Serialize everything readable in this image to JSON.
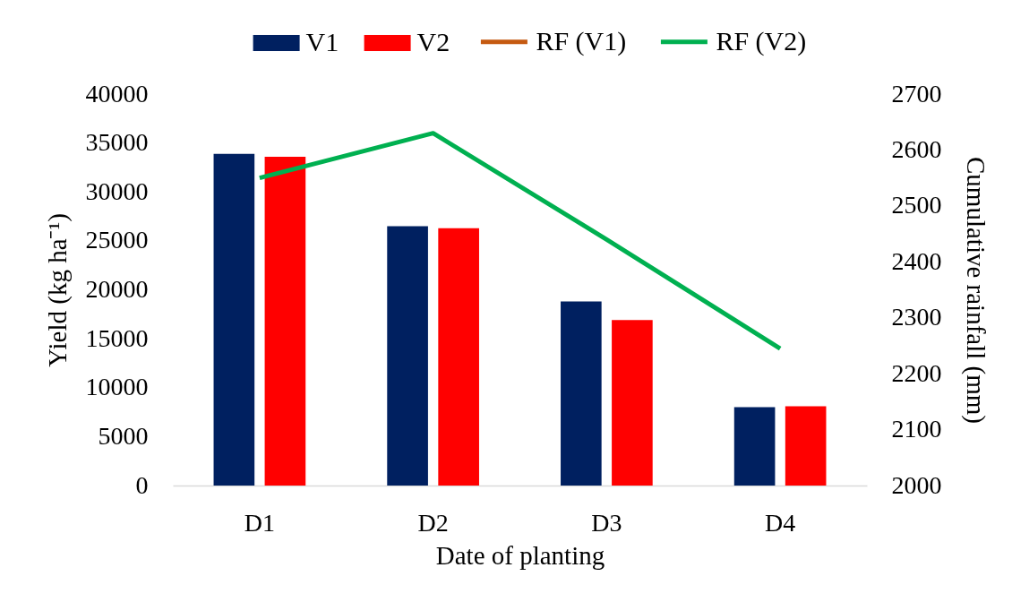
{
  "chart_data": {
    "type": "bar",
    "xlabel": "Date of planting",
    "ylabel": "Yield (kg ha⁻¹)",
    "y2label": "Cumulative rainfall (mm)",
    "categories": [
      "D1",
      "D2",
      "D3",
      "D4"
    ],
    "series": [
      {
        "name": "V1",
        "color": "#002060",
        "values": [
          33900,
          26500,
          18800,
          8000
        ]
      },
      {
        "name": "V2",
        "color": "#ff0000",
        "values": [
          33600,
          26300,
          16900,
          8100
        ]
      },
      {
        "name": "RF (V1)",
        "type": "line",
        "axis": "y2",
        "color": "#c55a11",
        "values": [
          null,
          null,
          null,
          null
        ]
      },
      {
        "name": "RF (V2)",
        "type": "line",
        "axis": "y2",
        "color": "#00b050",
        "values": [
          2550,
          2630,
          2440,
          2245
        ]
      }
    ],
    "ylim": [
      0,
      40000
    ],
    "yticks": [
      0,
      5000,
      10000,
      15000,
      20000,
      25000,
      30000,
      35000,
      40000
    ],
    "y2lim": [
      2000,
      2700
    ],
    "y2ticks": [
      2000,
      2100,
      2200,
      2300,
      2400,
      2500,
      2600,
      2700
    ],
    "grid": false,
    "legend": "top"
  }
}
